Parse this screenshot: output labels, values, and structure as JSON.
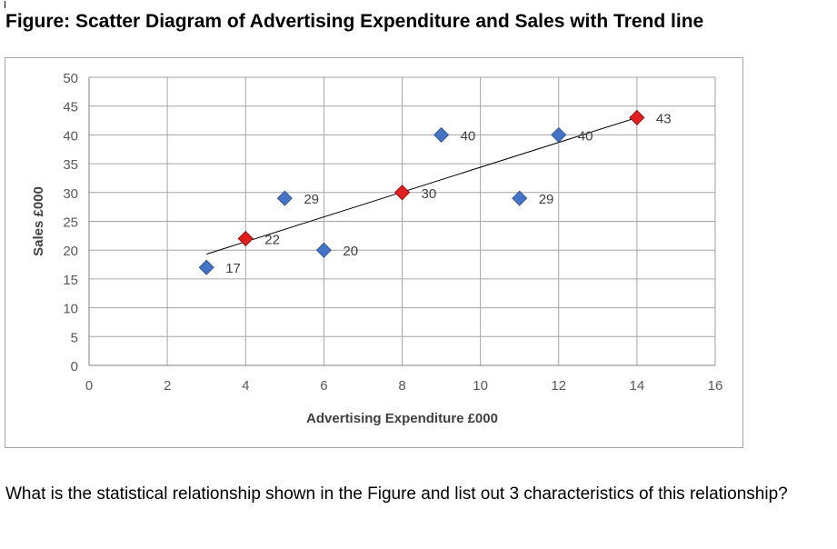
{
  "page": {
    "title": "Figure: Scatter Diagram of Advertising Expenditure and Sales with Trend line",
    "question": "What is the statistical relationship shown in the Figure and list out 3 characteristics of this relationship?"
  },
  "chart_data": {
    "type": "scatter",
    "title": "",
    "xlabel": "Advertising Expenditure £000",
    "ylabel": "Sales £000",
    "xlim": [
      0,
      16
    ],
    "ylim": [
      0,
      50
    ],
    "x_ticks": [
      0,
      2,
      4,
      6,
      8,
      10,
      12,
      14,
      16
    ],
    "y_ticks": [
      0,
      5,
      10,
      15,
      20,
      25,
      30,
      35,
      40,
      45,
      50
    ],
    "grid": true,
    "legend": "none",
    "points": [
      {
        "x": 3,
        "y": 17,
        "label": "17",
        "color": "#4472C4"
      },
      {
        "x": 4,
        "y": 22,
        "label": "22",
        "color": "#E02020"
      },
      {
        "x": 5,
        "y": 29,
        "label": "29",
        "color": "#4472C4"
      },
      {
        "x": 6,
        "y": 20,
        "label": "20",
        "color": "#4472C4"
      },
      {
        "x": 8,
        "y": 30,
        "label": "30",
        "color": "#E02020"
      },
      {
        "x": 9,
        "y": 40,
        "label": "40",
        "color": "#4472C4"
      },
      {
        "x": 11,
        "y": 29,
        "label": "29",
        "color": "#4472C4"
      },
      {
        "x": 12,
        "y": 40,
        "label": "40",
        "color": "#4472C4"
      },
      {
        "x": 14,
        "y": 43,
        "label": "43",
        "color": "#E02020"
      }
    ],
    "trendline": {
      "x1": 3,
      "y1": 19.3,
      "x2": 14,
      "y2": 43
    }
  }
}
